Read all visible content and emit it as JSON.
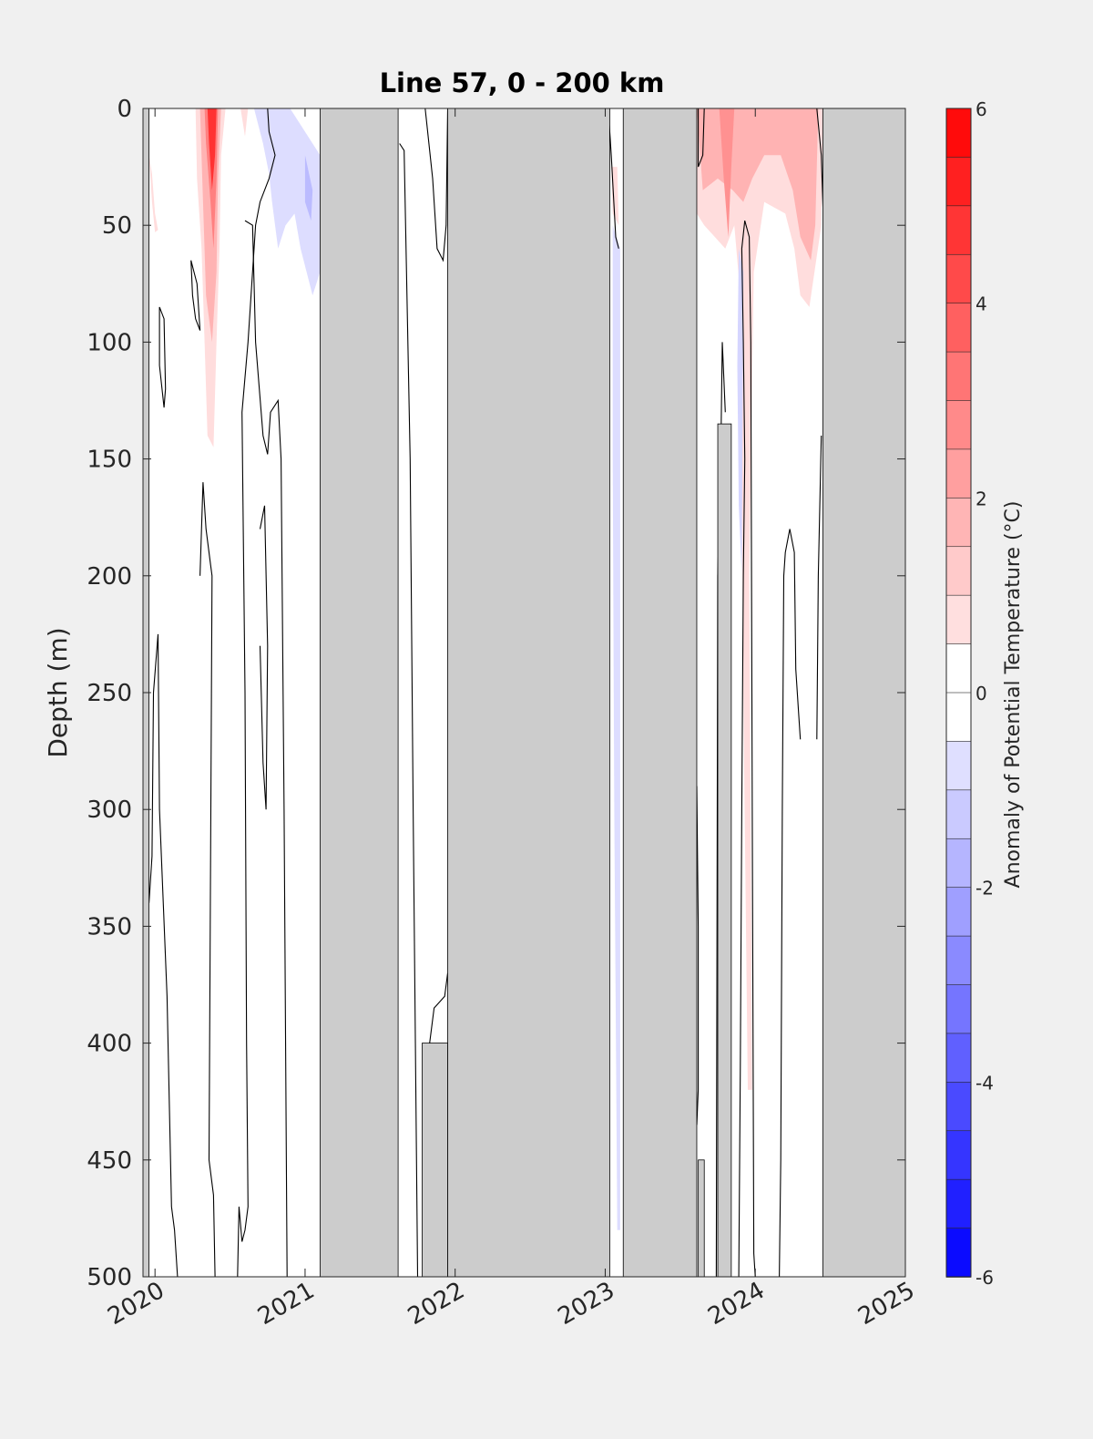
{
  "chart_data": {
    "type": "heatmap",
    "title": "Line 57, 0 - 200 km",
    "xlabel": "",
    "ylabel": "Depth (m)",
    "x_ticks": [
      "2020",
      "2021",
      "2022",
      "2023",
      "2024",
      "2025"
    ],
    "y_ticks": [
      "0",
      "50",
      "100",
      "150",
      "200",
      "250",
      "300",
      "350",
      "400",
      "450",
      "500"
    ],
    "xlim": [
      2019.92,
      2025.0
    ],
    "ylim": [
      500,
      0
    ],
    "y_reversed": true,
    "colorbar": {
      "label": "Anomaly of Potential Temperature (°C)",
      "ticks": [
        "6",
        "4",
        "2",
        "0",
        "-2",
        "-4",
        "-6"
      ],
      "range": [
        -6,
        6
      ],
      "step": 0.5,
      "low_color": "#0000ff",
      "mid_color": "#ffffff",
      "high_color": "#ff0000"
    },
    "no_data_color": "#cccccc",
    "no_data_periods": [
      {
        "start": 2021.1,
        "end": 2021.62,
        "depth_from": 0,
        "depth_to": 500
      },
      {
        "start": 2021.95,
        "end": 2023.03,
        "depth_from": 0,
        "depth_to": 500
      },
      {
        "start": 2023.12,
        "end": 2023.61,
        "depth_from": 0,
        "depth_to": 500
      },
      {
        "start": 2024.45,
        "end": 2025.0,
        "depth_from": 0,
        "depth_to": 500
      },
      {
        "start": 2021.78,
        "end": 2021.95,
        "depth_from": 400,
        "depth_to": 500
      },
      {
        "start": 2023.62,
        "end": 2023.66,
        "depth_from": 450,
        "depth_to": 500
      },
      {
        "start": 2023.75,
        "end": 2023.84,
        "depth_from": 135,
        "depth_to": 500
      },
      {
        "start": 2019.92,
        "end": 2019.96,
        "depth_from": 0,
        "depth_to": 500
      }
    ],
    "anomaly_regions": [
      {
        "anomaly": 0.8,
        "points": [
          [
            2019.96,
            20
          ],
          [
            2019.98,
            28
          ],
          [
            2020.0,
            45
          ],
          [
            2020.02,
            52
          ],
          [
            2020.0,
            53
          ],
          [
            2019.98,
            40
          ]
        ]
      },
      {
        "anomaly": 0.8,
        "points": [
          [
            2020.27,
            0
          ],
          [
            2020.47,
            0
          ],
          [
            2020.44,
            20
          ],
          [
            2020.43,
            60
          ],
          [
            2020.41,
            100
          ],
          [
            2020.39,
            145
          ],
          [
            2020.35,
            140
          ],
          [
            2020.33,
            100
          ],
          [
            2020.31,
            60
          ],
          [
            2020.28,
            30
          ]
        ]
      },
      {
        "anomaly": 1.8,
        "points": [
          [
            2020.3,
            0
          ],
          [
            2020.44,
            0
          ],
          [
            2020.42,
            30
          ],
          [
            2020.41,
            70
          ],
          [
            2020.38,
            100
          ],
          [
            2020.34,
            80
          ],
          [
            2020.32,
            40
          ]
        ]
      },
      {
        "anomaly": 3.0,
        "points": [
          [
            2020.33,
            0
          ],
          [
            2020.42,
            0
          ],
          [
            2020.41,
            30
          ],
          [
            2020.39,
            60
          ],
          [
            2020.37,
            40
          ],
          [
            2020.34,
            15
          ]
        ]
      },
      {
        "anomaly": 4.8,
        "points": [
          [
            2020.35,
            0
          ],
          [
            2020.41,
            0
          ],
          [
            2020.4,
            20
          ],
          [
            2020.38,
            35
          ],
          [
            2020.36,
            15
          ]
        ]
      },
      {
        "anomaly": 0.8,
        "points": [
          [
            2020.57,
            0
          ],
          [
            2020.62,
            0
          ],
          [
            2020.6,
            12
          ]
        ]
      },
      {
        "anomaly": -0.8,
        "points": [
          [
            2020.66,
            0
          ],
          [
            2020.9,
            0
          ],
          [
            2021.1,
            20
          ],
          [
            2021.1,
            70
          ],
          [
            2021.05,
            80
          ],
          [
            2020.97,
            60
          ],
          [
            2020.93,
            45
          ],
          [
            2020.87,
            50
          ],
          [
            2020.82,
            60
          ],
          [
            2020.78,
            40
          ],
          [
            2020.76,
            28
          ],
          [
            2020.72,
            15
          ]
        ]
      },
      {
        "anomaly": -1.6,
        "points": [
          [
            2021.0,
            20
          ],
          [
            2021.05,
            35
          ],
          [
            2021.04,
            48
          ],
          [
            2021.0,
            40
          ]
        ]
      },
      {
        "anomaly": 0.8,
        "points": [
          [
            2023.04,
            25
          ],
          [
            2023.08,
            25
          ],
          [
            2023.09,
            50
          ],
          [
            2023.05,
            45
          ]
        ]
      },
      {
        "anomaly": -0.8,
        "points": [
          [
            2023.05,
            50
          ],
          [
            2023.1,
            60
          ],
          [
            2023.1,
            480
          ],
          [
            2023.08,
            480
          ],
          [
            2023.06,
            300
          ],
          [
            2023.05,
            150
          ]
        ]
      },
      {
        "anomaly": 0.8,
        "points": [
          [
            2023.61,
            0
          ],
          [
            2024.45,
            0
          ],
          [
            2024.44,
            50
          ],
          [
            2024.36,
            85
          ],
          [
            2024.3,
            80
          ],
          [
            2024.26,
            60
          ],
          [
            2024.2,
            45
          ],
          [
            2024.06,
            40
          ],
          [
            2023.99,
            70
          ],
          [
            2023.96,
            200
          ],
          [
            2023.98,
            420
          ],
          [
            2023.95,
            420
          ],
          [
            2023.92,
            250
          ],
          [
            2023.9,
            80
          ],
          [
            2023.86,
            50
          ],
          [
            2023.8,
            60
          ],
          [
            2023.73,
            55
          ],
          [
            2023.66,
            50
          ],
          [
            2023.61,
            45
          ]
        ]
      },
      {
        "anomaly": 1.8,
        "points": [
          [
            2023.61,
            0
          ],
          [
            2024.42,
            0
          ],
          [
            2024.4,
            50
          ],
          [
            2024.37,
            65
          ],
          [
            2024.3,
            55
          ],
          [
            2024.25,
            35
          ],
          [
            2024.17,
            20
          ],
          [
            2024.06,
            20
          ],
          [
            2023.98,
            30
          ],
          [
            2023.92,
            40
          ],
          [
            2023.85,
            35
          ],
          [
            2023.75,
            30
          ],
          [
            2023.65,
            35
          ]
        ]
      },
      {
        "anomaly": 2.6,
        "points": [
          [
            2023.76,
            0
          ],
          [
            2023.86,
            0
          ],
          [
            2023.84,
            25
          ],
          [
            2023.82,
            55
          ],
          [
            2023.79,
            30
          ]
        ]
      },
      {
        "anomaly": -1.0,
        "points": [
          [
            2023.89,
            60
          ],
          [
            2023.92,
            70
          ],
          [
            2023.91,
            200
          ],
          [
            2023.89,
            170
          ],
          [
            2023.88,
            110
          ]
        ]
      }
    ],
    "zero_contours": [
      [
        [
          2019.96,
          340
        ],
        [
          2019.98,
          320
        ],
        [
          2019.99,
          250
        ],
        [
          2020.02,
          225
        ],
        [
          2020.03,
          300
        ],
        [
          2020.08,
          380
        ],
        [
          2020.11,
          470
        ],
        [
          2020.13,
          480
        ],
        [
          2020.15,
          500
        ]
      ],
      [
        [
          2020.03,
          85
        ],
        [
          2020.06,
          90
        ],
        [
          2020.07,
          120
        ],
        [
          2020.06,
          128
        ],
        [
          2020.03,
          110
        ],
        [
          2020.03,
          85
        ]
      ],
      [
        [
          2020.24,
          65
        ],
        [
          2020.28,
          75
        ],
        [
          2020.3,
          95
        ],
        [
          2020.27,
          90
        ],
        [
          2020.25,
          80
        ],
        [
          2020.24,
          65
        ]
      ],
      [
        [
          2020.3,
          200
        ],
        [
          2020.32,
          160
        ],
        [
          2020.34,
          180
        ],
        [
          2020.37,
          195
        ],
        [
          2020.38,
          200
        ],
        [
          2020.36,
          450
        ],
        [
          2020.39,
          465
        ],
        [
          2020.4,
          500
        ]
      ],
      [
        [
          2020.55,
          500
        ],
        [
          2020.56,
          470
        ],
        [
          2020.58,
          485
        ],
        [
          2020.6,
          480
        ],
        [
          2020.62,
          470
        ],
        [
          2020.61,
          400
        ],
        [
          2020.6,
          250
        ],
        [
          2020.58,
          130
        ],
        [
          2020.62,
          100
        ],
        [
          2020.67,
          50
        ],
        [
          2020.7,
          40
        ],
        [
          2020.76,
          30
        ],
        [
          2020.8,
          20
        ],
        [
          2020.76,
          10
        ],
        [
          2020.75,
          0
        ]
      ],
      [
        [
          2020.6,
          48
        ],
        [
          2020.65,
          50
        ],
        [
          2020.67,
          100
        ],
        [
          2020.72,
          140
        ],
        [
          2020.75,
          148
        ],
        [
          2020.77,
          130
        ],
        [
          2020.82,
          125
        ],
        [
          2020.84,
          150
        ],
        [
          2020.86,
          300
        ],
        [
          2020.88,
          500
        ]
      ],
      [
        [
          2020.7,
          180
        ],
        [
          2020.73,
          170
        ],
        [
          2020.75,
          230
        ],
        [
          2020.74,
          300
        ],
        [
          2020.72,
          280
        ],
        [
          2020.7,
          230
        ]
      ],
      [
        [
          2021.63,
          15
        ],
        [
          2021.66,
          18
        ],
        [
          2021.7,
          150
        ],
        [
          2021.72,
          300
        ],
        [
          2021.75,
          500
        ]
      ],
      [
        [
          2021.8,
          0
        ],
        [
          2021.85,
          30
        ],
        [
          2021.88,
          60
        ],
        [
          2021.92,
          65
        ],
        [
          2021.94,
          50
        ],
        [
          2021.95,
          0
        ]
      ],
      [
        [
          2021.82,
          500
        ],
        [
          2021.83,
          400
        ],
        [
          2021.86,
          385
        ],
        [
          2021.93,
          380
        ],
        [
          2021.95,
          370
        ]
      ],
      [
        [
          2023.02,
          0
        ],
        [
          2023.04,
          20
        ],
        [
          2023.07,
          55
        ],
        [
          2023.09,
          60
        ]
      ],
      [
        [
          2023.62,
          0
        ],
        [
          2023.62,
          25
        ],
        [
          2023.65,
          20
        ],
        [
          2023.66,
          0
        ]
      ],
      [
        [
          2023.61,
          290
        ],
        [
          2023.62,
          350
        ],
        [
          2023.62,
          420
        ],
        [
          2023.61,
          435
        ]
      ],
      [
        [
          2023.74,
          500
        ],
        [
          2023.75,
          200
        ],
        [
          2023.77,
          150
        ],
        [
          2023.78,
          100
        ],
        [
          2023.8,
          130
        ]
      ],
      [
        [
          2023.89,
          500
        ],
        [
          2023.9,
          410
        ],
        [
          2023.91,
          300
        ],
        [
          2023.92,
          200
        ],
        [
          2023.93,
          150
        ],
        [
          2023.92,
          100
        ],
        [
          2023.91,
          60
        ],
        [
          2023.93,
          48
        ],
        [
          2023.96,
          55
        ],
        [
          2023.97,
          100
        ],
        [
          2023.98,
          300
        ],
        [
          2023.99,
          490
        ],
        [
          2024.0,
          500
        ]
      ],
      [
        [
          2024.16,
          500
        ],
        [
          2024.17,
          450
        ],
        [
          2024.18,
          300
        ],
        [
          2024.19,
          200
        ],
        [
          2024.2,
          190
        ],
        [
          2024.23,
          180
        ],
        [
          2024.26,
          190
        ],
        [
          2024.27,
          240
        ],
        [
          2024.29,
          260
        ],
        [
          2024.3,
          270
        ]
      ],
      [
        [
          2024.41,
          0
        ],
        [
          2024.44,
          20
        ],
        [
          2024.46,
          60
        ]
      ],
      [
        [
          2024.41,
          270
        ],
        [
          2024.42,
          200
        ],
        [
          2024.44,
          140
        ]
      ]
    ]
  }
}
